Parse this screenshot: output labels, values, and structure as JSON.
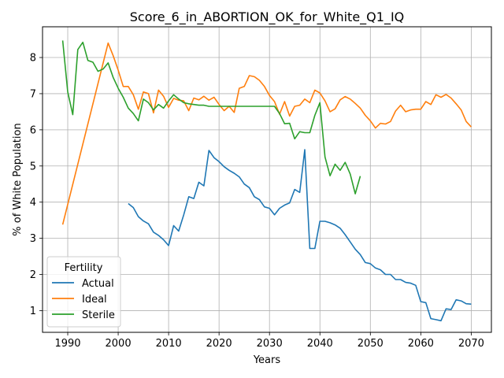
{
  "chart_data": {
    "type": "line",
    "title": "Score_6_in_ABORTION_OK_for_White_Q1_IQ",
    "xlabel": "Years",
    "ylabel": "% of White Population",
    "xlim": [
      1985,
      2074
    ],
    "ylim": [
      0.4,
      8.85
    ],
    "xticks": [
      1990,
      2000,
      2010,
      2020,
      2030,
      2040,
      2050,
      2060,
      2070
    ],
    "yticks": [
      1,
      2,
      3,
      4,
      5,
      6,
      7,
      8
    ],
    "grid": true,
    "legend": {
      "title": "Fertility",
      "placement": "lower-left"
    },
    "series": [
      {
        "name": "Actual",
        "color": "#1f77b4",
        "x": [
          2002,
          2003,
          2004,
          2005,
          2006,
          2007,
          2008,
          2009,
          2010,
          2011,
          2012,
          2013,
          2014,
          2015,
          2016,
          2017,
          2018,
          2019,
          2020,
          2021,
          2022,
          2023,
          2024,
          2025,
          2026,
          2027,
          2028,
          2029,
          2030,
          2031,
          2032,
          2033,
          2034,
          2035,
          2036,
          2037,
          2038,
          2039,
          2040,
          2041,
          2042,
          2043,
          2044,
          2045,
          2046,
          2047,
          2048,
          2049,
          2050,
          2051,
          2052,
          2053,
          2054,
          2055,
          2056,
          2057,
          2058,
          2059,
          2060,
          2061,
          2062,
          2063,
          2064,
          2065,
          2066,
          2067,
          2068,
          2069,
          2070
        ],
        "values": [
          3.96,
          3.85,
          3.6,
          3.48,
          3.4,
          3.17,
          3.08,
          2.96,
          2.8,
          3.35,
          3.2,
          3.65,
          4.15,
          4.1,
          4.55,
          4.45,
          5.43,
          5.23,
          5.12,
          4.98,
          4.88,
          4.8,
          4.7,
          4.5,
          4.4,
          4.15,
          4.07,
          3.87,
          3.83,
          3.65,
          3.83,
          3.92,
          3.98,
          4.35,
          4.27,
          5.45,
          2.72,
          2.72,
          3.47,
          3.47,
          3.43,
          3.37,
          3.28,
          3.1,
          2.9,
          2.7,
          2.55,
          2.33,
          2.3,
          2.18,
          2.13,
          2.0,
          2.0,
          1.86,
          1.86,
          1.78,
          1.76,
          1.7,
          1.25,
          1.22,
          0.78,
          0.75,
          0.72,
          1.05,
          1.03,
          1.3,
          1.27,
          1.19,
          1.18
        ]
      },
      {
        "name": "Ideal",
        "color": "#ff7f0e",
        "x": [
          1989,
          1998,
          1999,
          2000,
          2001,
          2002,
          2003,
          2004,
          2005,
          2006,
          2007,
          2008,
          2009,
          2010,
          2011,
          2012,
          2013,
          2014,
          2015,
          2016,
          2017,
          2018,
          2019,
          2020,
          2021,
          2022,
          2023,
          2024,
          2025,
          2026,
          2027,
          2028,
          2029,
          2030,
          2031,
          2032,
          2033,
          2034,
          2035,
          2036,
          2037,
          2038,
          2039,
          2040,
          2041,
          2042,
          2043,
          2044,
          2045,
          2046,
          2047,
          2048,
          2049,
          2050,
          2051,
          2052,
          2053,
          2054,
          2055,
          2056,
          2057,
          2058,
          2059,
          2060,
          2061,
          2062,
          2063,
          2064,
          2065,
          2066,
          2067,
          2068,
          2069,
          2070
        ],
        "values": [
          3.38,
          8.4,
          8.05,
          7.65,
          7.2,
          7.2,
          6.97,
          6.57,
          7.05,
          7.0,
          6.47,
          7.1,
          6.93,
          6.62,
          6.87,
          6.82,
          6.8,
          6.53,
          6.88,
          6.83,
          6.93,
          6.82,
          6.9,
          6.7,
          6.53,
          6.65,
          6.48,
          7.15,
          7.2,
          7.5,
          7.47,
          7.37,
          7.2,
          6.95,
          6.78,
          6.43,
          6.78,
          6.38,
          6.65,
          6.68,
          6.85,
          6.75,
          7.1,
          7.02,
          6.8,
          6.5,
          6.58,
          6.83,
          6.92,
          6.85,
          6.73,
          6.6,
          6.4,
          6.25,
          6.05,
          6.18,
          6.16,
          6.23,
          6.52,
          6.68,
          6.5,
          6.55,
          6.57,
          6.57,
          6.78,
          6.7,
          6.97,
          6.9,
          6.98,
          6.88,
          6.72,
          6.55,
          6.23,
          6.08
        ]
      },
      {
        "name": "Sterile",
        "color": "#2ca02c",
        "x": [
          1989,
          1990,
          1991,
          1992,
          1993,
          1994,
          1995,
          1996,
          1997,
          1998,
          1999,
          2000,
          2001,
          2002,
          2003,
          2004,
          2005,
          2006,
          2007,
          2008,
          2009,
          2010,
          2011,
          2012,
          2013,
          2014,
          2015,
          2016,
          2017,
          2018,
          2019,
          2020,
          2021,
          2022,
          2023,
          2024,
          2025,
          2026,
          2027,
          2028,
          2029,
          2030,
          2031,
          2032,
          2033,
          2034,
          2035,
          2036,
          2037,
          2038,
          2039,
          2040,
          2041,
          2042,
          2043,
          2044,
          2045,
          2046,
          2047,
          2048
        ],
        "values": [
          8.47,
          7.05,
          6.42,
          8.22,
          8.42,
          7.92,
          7.87,
          7.62,
          7.68,
          7.85,
          7.45,
          7.15,
          6.9,
          6.6,
          6.45,
          6.25,
          6.85,
          6.75,
          6.55,
          6.7,
          6.6,
          6.8,
          6.97,
          6.85,
          6.75,
          6.72,
          6.7,
          6.68,
          6.68,
          6.65,
          6.65,
          6.65,
          6.65,
          6.65,
          6.65,
          6.65,
          6.65,
          6.65,
          6.65,
          6.65,
          6.65,
          6.65,
          6.65,
          6.45,
          6.17,
          6.18,
          5.75,
          5.95,
          5.92,
          5.92,
          6.4,
          6.75,
          5.25,
          4.73,
          5.05,
          4.88,
          5.1,
          4.78,
          4.23,
          4.72
        ]
      }
    ]
  }
}
